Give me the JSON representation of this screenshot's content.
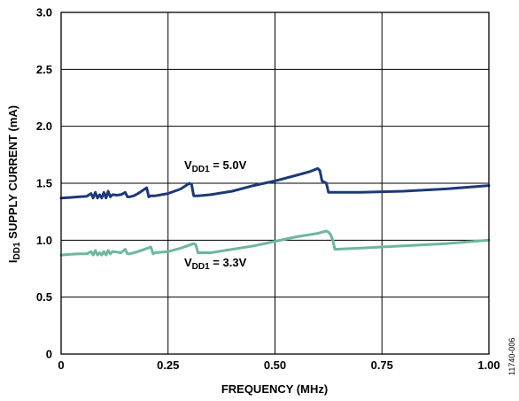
{
  "chart_data": {
    "type": "line",
    "xlabel": "FREQUENCY (MHz)",
    "ylabel": {
      "main": "I",
      "subscript": "DD1",
      "rest": " SUPPLY CURRENT (mA)"
    },
    "xlim": [
      0,
      1.0
    ],
    "ylim": [
      0,
      3.0
    ],
    "x_ticks": [
      "0",
      "0.25",
      "0.50",
      "0.75",
      "1.00"
    ],
    "y_ticks": [
      "0",
      "0.5",
      "1.0",
      "1.5",
      "2.0",
      "2.5",
      "3.0"
    ],
    "grid": true,
    "figure_id": "11740-006",
    "series": [
      {
        "color": "#1c3a78",
        "label": {
          "main": "V",
          "subscript": "DD1",
          "rest": " = 5.0V"
        },
        "x": [
          0,
          0.02,
          0.04,
          0.06,
          0.07,
          0.075,
          0.08,
          0.085,
          0.09,
          0.095,
          0.1,
          0.105,
          0.11,
          0.115,
          0.12,
          0.13,
          0.14,
          0.15,
          0.155,
          0.16,
          0.17,
          0.18,
          0.2,
          0.205,
          0.21,
          0.215,
          0.22,
          0.25,
          0.28,
          0.3,
          0.305,
          0.31,
          0.32,
          0.35,
          0.4,
          0.45,
          0.5,
          0.55,
          0.58,
          0.6,
          0.605,
          0.61,
          0.62,
          0.625,
          0.63,
          0.7,
          0.8,
          0.9,
          1.0
        ],
        "y": [
          1.37,
          1.375,
          1.38,
          1.385,
          1.41,
          1.37,
          1.42,
          1.37,
          1.4,
          1.37,
          1.42,
          1.37,
          1.43,
          1.38,
          1.4,
          1.395,
          1.4,
          1.42,
          1.38,
          1.38,
          1.39,
          1.41,
          1.46,
          1.38,
          1.39,
          1.39,
          1.39,
          1.41,
          1.45,
          1.5,
          1.49,
          1.39,
          1.39,
          1.4,
          1.43,
          1.48,
          1.52,
          1.57,
          1.6,
          1.63,
          1.61,
          1.52,
          1.5,
          1.42,
          1.42,
          1.42,
          1.43,
          1.45,
          1.48
        ]
      },
      {
        "color": "#6cb89a",
        "label": {
          "main": "V",
          "subscript": "DD1",
          "rest": " = 3.3V"
        },
        "x": [
          0,
          0.02,
          0.04,
          0.06,
          0.07,
          0.075,
          0.08,
          0.085,
          0.09,
          0.095,
          0.1,
          0.105,
          0.11,
          0.115,
          0.12,
          0.13,
          0.14,
          0.15,
          0.155,
          0.16,
          0.18,
          0.21,
          0.215,
          0.22,
          0.25,
          0.28,
          0.31,
          0.315,
          0.32,
          0.35,
          0.4,
          0.45,
          0.5,
          0.55,
          0.6,
          0.62,
          0.625,
          0.63,
          0.635,
          0.64,
          0.7,
          0.8,
          0.9,
          1.0
        ],
        "y": [
          0.87,
          0.875,
          0.88,
          0.88,
          0.9,
          0.87,
          0.91,
          0.87,
          0.89,
          0.87,
          0.9,
          0.87,
          0.91,
          0.88,
          0.9,
          0.895,
          0.89,
          0.92,
          0.88,
          0.88,
          0.9,
          0.94,
          0.88,
          0.89,
          0.9,
          0.93,
          0.97,
          0.96,
          0.89,
          0.89,
          0.92,
          0.95,
          0.99,
          1.03,
          1.06,
          1.08,
          1.07,
          1.05,
          1.0,
          0.92,
          0.93,
          0.95,
          0.97,
          1.0
        ]
      }
    ]
  }
}
